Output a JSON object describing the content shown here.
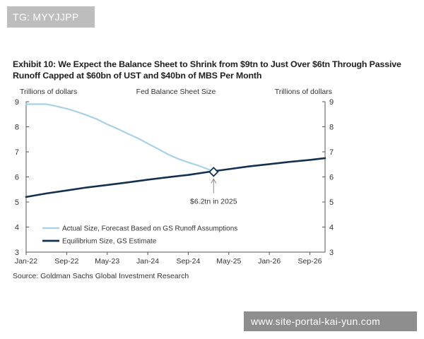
{
  "watermark_top": "TG: MYYJJPP",
  "watermark_bottom": "www.site-portal-kai-yun.com",
  "title": "Exhibit 10: We Expect the Balance Sheet to Shrink from $9tn to Just Over $6tn Through Passive Runoff Capped at $60bn of UST and $40bn of MBS Per Month",
  "source": "Source: Goldman Sachs Global Investment Research",
  "colors": {
    "actual": "#a9d1e6",
    "equilibrium": "#14304f",
    "axis": "#555555"
  },
  "chart_data": {
    "type": "line",
    "title": "Fed Balance Sheet Size",
    "ylabel_left": "Trillions  of dollars",
    "ylabel_right": "Trillions  of dollars",
    "xlabel": "",
    "ylim": [
      3,
      9
    ],
    "y_ticks": [
      3,
      4,
      5,
      6,
      7,
      8,
      9
    ],
    "x_tick_labels": [
      "Jan-22",
      "Sep-22",
      "May-23",
      "Jan-24",
      "Sep-24",
      "May-25",
      "Jan-26",
      "Sep-26"
    ],
    "x_range_months": [
      0,
      59
    ],
    "annotation": {
      "label": "$6.2tn in 2025",
      "x_month": 37,
      "y": 6.2
    },
    "legend_position": "lower-left",
    "series": [
      {
        "name": "Actual Size, Forecast Based on GS Runoff Assumptions",
        "x_months": [
          0,
          4,
          6,
          8,
          10,
          12,
          14,
          16,
          18,
          20,
          22,
          24,
          26,
          28,
          30,
          32,
          34,
          36,
          37
        ],
        "values": [
          8.9,
          8.9,
          8.82,
          8.72,
          8.6,
          8.46,
          8.3,
          8.1,
          7.92,
          7.73,
          7.55,
          7.33,
          7.12,
          6.9,
          6.72,
          6.58,
          6.45,
          6.3,
          6.2
        ]
      },
      {
        "name": "Equilibrium Size, GS Estimate",
        "x_months": [
          0,
          4,
          8,
          12,
          16,
          20,
          24,
          28,
          32,
          36,
          40,
          44,
          48,
          52,
          56,
          59
        ],
        "values": [
          5.2,
          5.34,
          5.46,
          5.58,
          5.68,
          5.78,
          5.89,
          5.99,
          6.08,
          6.2,
          6.31,
          6.42,
          6.51,
          6.6,
          6.68,
          6.75
        ]
      }
    ]
  }
}
